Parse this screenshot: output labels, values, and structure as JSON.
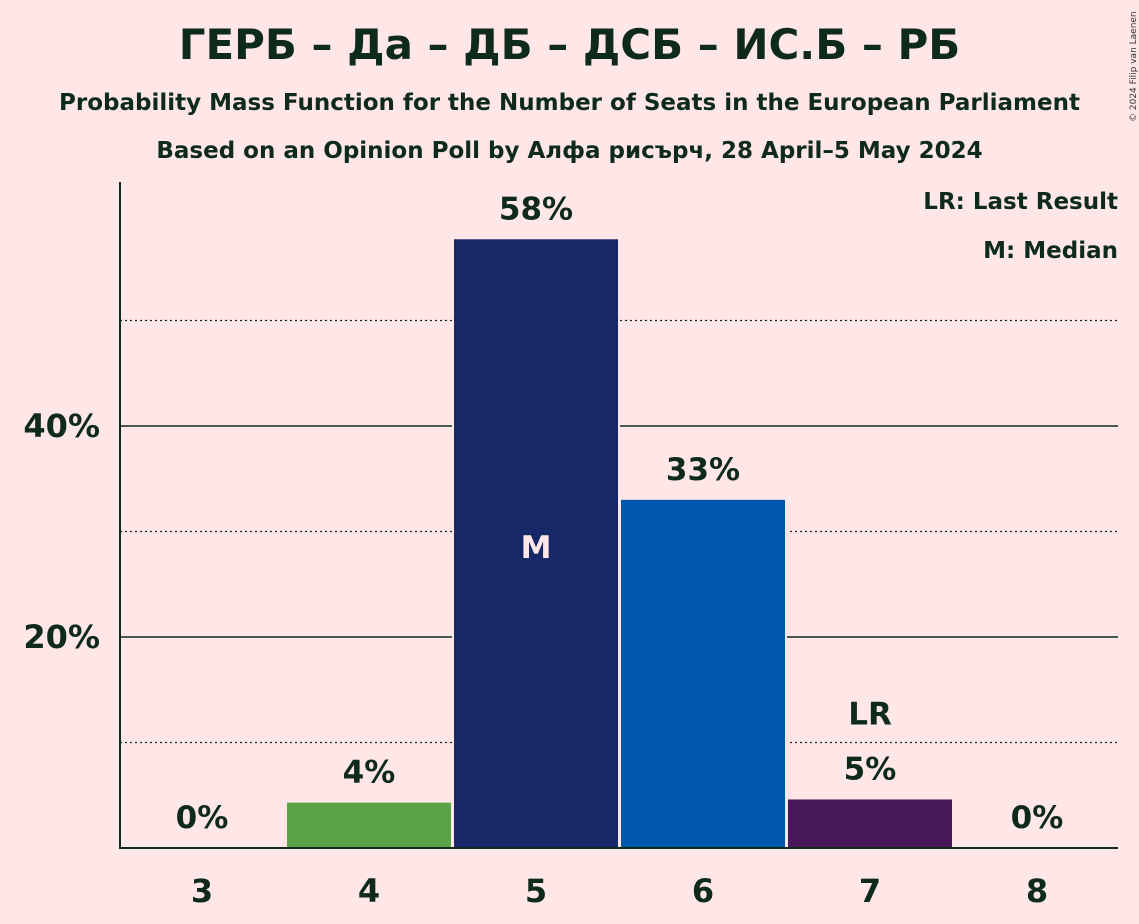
{
  "title": "ГЕРБ – Да – ДБ – ДСБ – ИС.Б – РБ",
  "subtitle": "Probability Mass Function for the Number of Seats in the European Parliament",
  "subtitle2": "Based on an Opinion Poll by Алфа рисърч, 28 April–5 May 2024",
  "copyright": "© 2024 Filip van Laenen",
  "legend": {
    "lr": "LR: Last Result",
    "m": "M: Median"
  },
  "chart_data": {
    "type": "bar",
    "categories": [
      "3",
      "4",
      "5",
      "6",
      "7",
      "8"
    ],
    "values": [
      0,
      4.3,
      57.7,
      33.0,
      4.6,
      0
    ],
    "labels": [
      "0%",
      "4%",
      "58%",
      "33%",
      "5%",
      "0%"
    ],
    "colors": [
      "#5BA346",
      "#5BA346",
      "#162868",
      "#0058AC",
      "#481758",
      "#481758"
    ],
    "median_category": "5",
    "median_marker": "M",
    "last_result_category": "7",
    "last_result_marker": "LR",
    "ylim": [
      0,
      63
    ],
    "y_ticks": [
      20,
      40
    ],
    "y_tick_labels": [
      "20%",
      "40%"
    ],
    "minor_gridlines": [
      10,
      30,
      50
    ],
    "major_gridlines": [
      20,
      40
    ],
    "legend_position": "top-right"
  }
}
